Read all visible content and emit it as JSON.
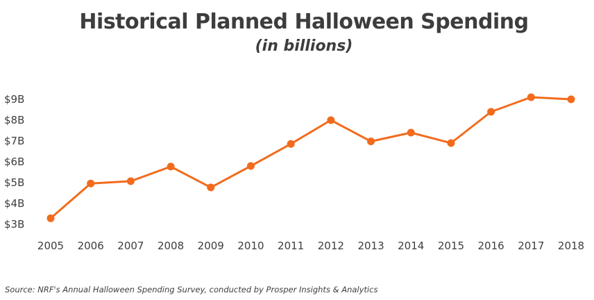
{
  "chart_data": {
    "type": "line",
    "title": "Historical Planned Halloween Spending",
    "subtitle": "(in billions)",
    "xlabel": "",
    "ylabel": "",
    "categories": [
      "2005",
      "2006",
      "2007",
      "2008",
      "2009",
      "2010",
      "2011",
      "2012",
      "2013",
      "2014",
      "2015",
      "2016",
      "2017",
      "2018"
    ],
    "series": [
      {
        "values": [
          3.29,
          4.96,
          5.07,
          5.77,
          4.77,
          5.8,
          6.86,
          8.0,
          6.98,
          7.4,
          6.9,
          8.4,
          9.1,
          9.0
        ]
      }
    ],
    "yticks": [
      3,
      4,
      5,
      6,
      7,
      8,
      9
    ],
    "ytick_labels": [
      "$3B",
      "$4B",
      "$5B",
      "$6B",
      "$7B",
      "$8B",
      "$9B"
    ],
    "ylim": [
      2.8,
      9.4
    ],
    "grid": false,
    "color": "#f26b1d"
  },
  "source": "Source: NRF's Annual Halloween Spending Survey, conducted by Prosper Insights & Analytics"
}
